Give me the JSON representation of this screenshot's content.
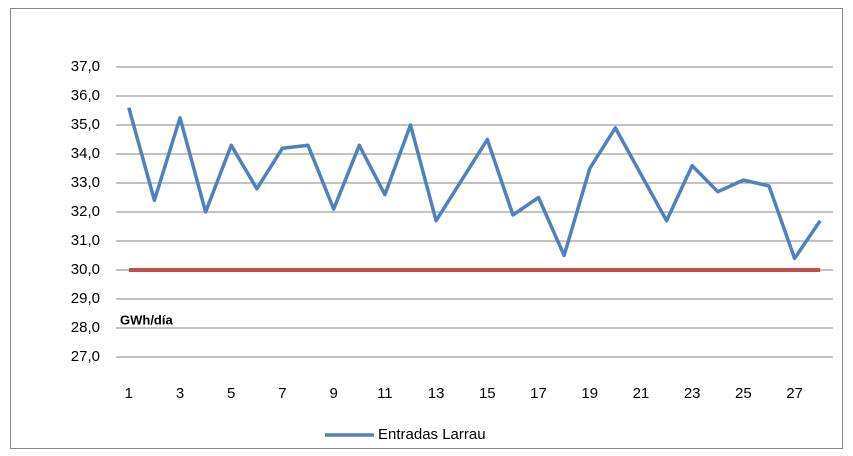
{
  "chart_data": {
    "type": "line",
    "annotation": "GWh/día",
    "categories": [
      1,
      null,
      3,
      null,
      5,
      null,
      7,
      null,
      9,
      null,
      11,
      null,
      13,
      null,
      15,
      null,
      17,
      null,
      19,
      null,
      21,
      null,
      23,
      null,
      25,
      null,
      27,
      null
    ],
    "series": [
      {
        "name": "Entradas Larrau",
        "color": "#4f81bd",
        "values": [
          35.6,
          32.4,
          35.25,
          32.0,
          34.3,
          32.8,
          34.2,
          34.3,
          32.1,
          34.3,
          32.6,
          35.0,
          31.7,
          33.1,
          34.5,
          31.9,
          32.5,
          30.5,
          33.5,
          34.9,
          33.3,
          31.7,
          33.6,
          32.7,
          33.1,
          32.9,
          30.4,
          31.7
        ]
      }
    ],
    "reference_line": {
      "value": 30,
      "color": "#c0504d"
    },
    "ylim": [
      27,
      37
    ],
    "yticks": [
      {
        "value": 27,
        "label": "27,0"
      },
      {
        "value": 28,
        "label": "28,0"
      },
      {
        "value": 29,
        "label": "29,0"
      },
      {
        "value": 30,
        "label": "30,0"
      },
      {
        "value": 31,
        "label": "31,0"
      },
      {
        "value": 32,
        "label": "32,0"
      },
      {
        "value": 33,
        "label": "33,0"
      },
      {
        "value": 34,
        "label": "34,0"
      },
      {
        "value": 35,
        "label": "35,0"
      },
      {
        "value": 36,
        "label": "36,0"
      },
      {
        "value": 37,
        "label": "37,0"
      }
    ],
    "grid": true,
    "legend": "bottom"
  }
}
